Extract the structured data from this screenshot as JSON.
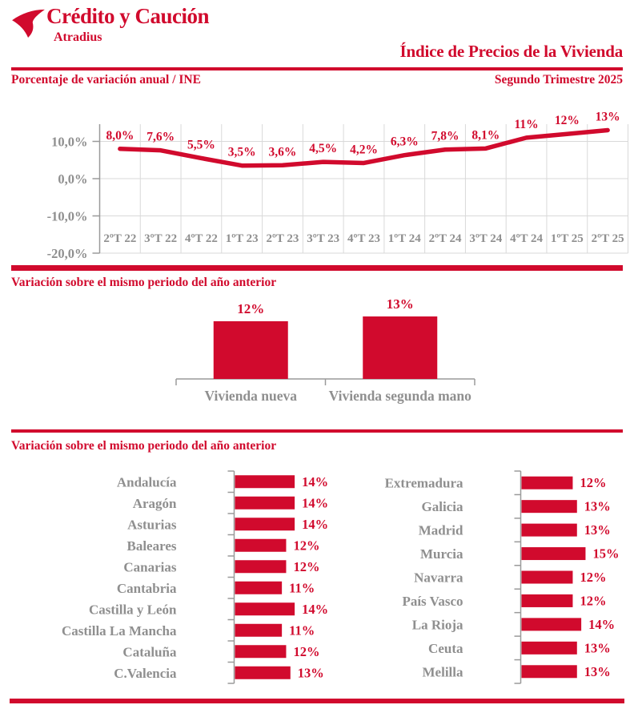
{
  "brand": {
    "name": "Crédito y Caución",
    "sub": "Atradius"
  },
  "header": {
    "title": "Índice de Precios de la Vivienda",
    "subtitle_left": "Porcentaje de variación anual / INE",
    "subtitle_right": "Segundo Trimestre 2025"
  },
  "colors": {
    "red": "#d10a2d",
    "gray_text": "#8f8f8f",
    "axis": "#9a9a9a",
    "grid": "#d9d9d9"
  },
  "chart_data": [
    {
      "type": "line",
      "title": "Porcentaje de variación anual / INE",
      "period": "Segundo Trimestre 2025",
      "x": [
        "2ºT 22",
        "3ºT 22",
        "4ºT 22",
        "1ºT 23",
        "2ºT 23",
        "3ºT 23",
        "4ºT 23",
        "1ºT 24",
        "2ºT 24",
        "3ºT 24",
        "4ºT 24",
        "1ºT 25",
        "2ºT 25"
      ],
      "values": [
        8.0,
        7.6,
        5.5,
        3.5,
        3.6,
        4.5,
        4.2,
        6.3,
        7.8,
        8.1,
        11,
        12,
        13
      ],
      "point_labels": [
        "8,0%",
        "7,6%",
        "5,5%",
        "3,5%",
        "3,6%",
        "4,5%",
        "4,2%",
        "6,3%",
        "7,8%",
        "8,1%",
        "11%",
        "12%",
        "13%"
      ],
      "yticks": [
        {
          "v": 10,
          "label": "10,0%"
        },
        {
          "v": 0,
          "label": "0,0%"
        },
        {
          "v": -10,
          "label": "-10,0%"
        },
        {
          "v": -20,
          "label": "-20,0%"
        }
      ],
      "ylim": [
        -20,
        20
      ],
      "grid": true,
      "legend": "none"
    },
    {
      "type": "bar",
      "section_title": "Variación sobre el mismo periodo del año anterior",
      "categories": [
        "Vivienda nueva",
        "Vivienda segunda mano"
      ],
      "values": [
        12,
        13
      ],
      "labels": [
        "12%",
        "13%"
      ]
    },
    {
      "type": "hbar",
      "section_title": "Variación sobre el mismo periodo del año anterior",
      "columns": [
        {
          "categories": [
            "Andalucía",
            "Aragón",
            "Asturias",
            "Baleares",
            "Canarias",
            "Cantabria",
            "Castilla y León",
            "Castilla La Mancha",
            "Cataluña",
            "C.Valencia"
          ],
          "values": [
            14,
            14,
            14,
            12,
            12,
            11,
            14,
            11,
            12,
            13
          ],
          "labels": [
            "14%",
            "14%",
            "14%",
            "12%",
            "12%",
            "11%",
            "14%",
            "11%",
            "12%",
            "13%"
          ]
        },
        {
          "categories": [
            "Extremadura",
            "Galicia",
            "Madrid",
            "Murcia",
            "Navarra",
            "País Vasco",
            "La Rioja",
            "Ceuta",
            "Melilla"
          ],
          "values": [
            12,
            13,
            13,
            15,
            12,
            12,
            14,
            13,
            13
          ],
          "labels": [
            "12%",
            "13%",
            "13%",
            "15%",
            "12%",
            "12%",
            "14%",
            "13%",
            "13%"
          ]
        }
      ]
    }
  ]
}
